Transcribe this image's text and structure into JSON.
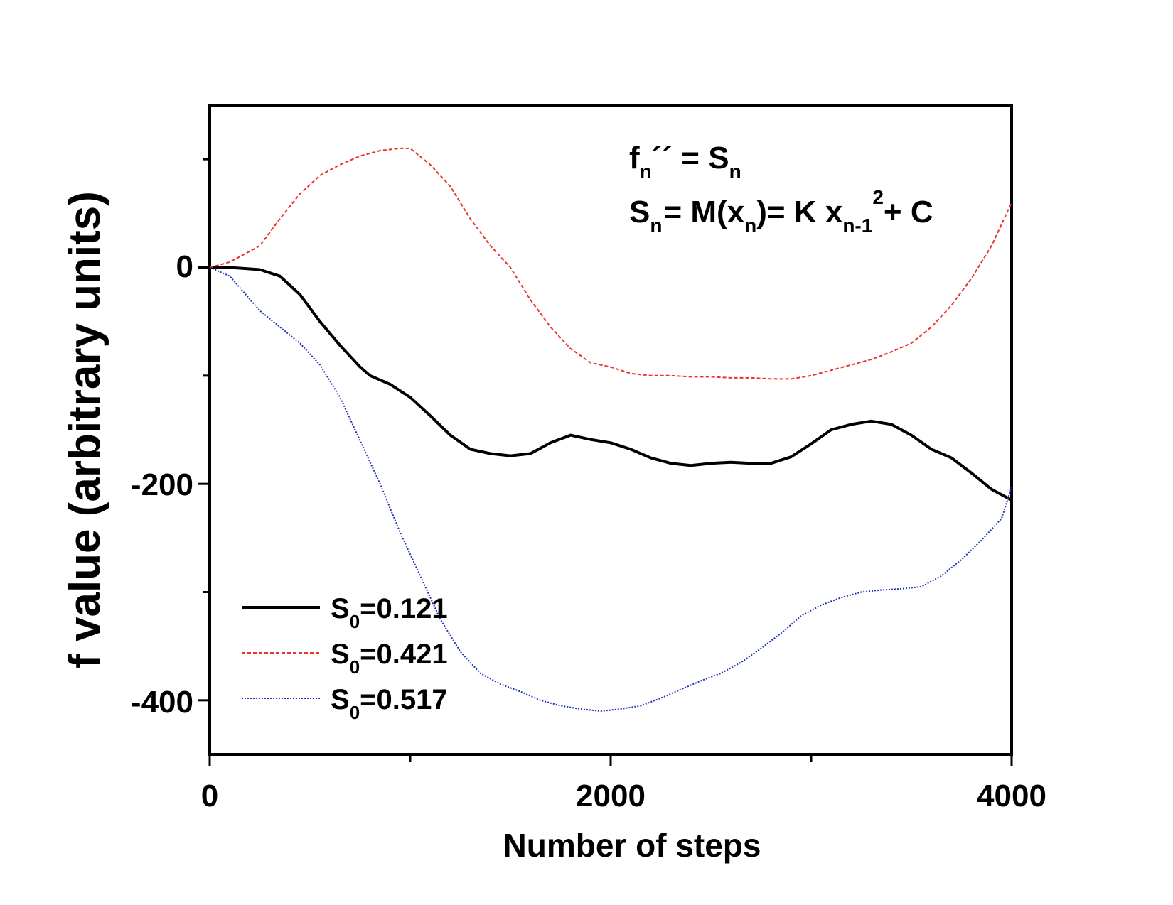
{
  "chart_data": {
    "type": "line",
    "xlabel": "Number of steps",
    "ylabel": "f value (arbitrary units)",
    "xlim": [
      0,
      4000
    ],
    "ylim": [
      -450,
      150
    ],
    "x_ticks": [
      0,
      2000,
      4000
    ],
    "x_tick_labels": [
      "0",
      "2000",
      "4000"
    ],
    "y_ticks": [
      0,
      -200,
      -400
    ],
    "y_tick_labels": [
      "0",
      "-200",
      "-400"
    ],
    "grid": false,
    "legend_position": "bottom-left",
    "equations": {
      "line1": {
        "f": "f",
        "f_sub": "n",
        "primes": "´´",
        "eq": " = S",
        "s_sub": "n"
      },
      "line2": {
        "s": "S",
        "s_sub": "n",
        "mid": "= M(x",
        "x_sub": "n",
        "mid2": ")= K x",
        "x2_sub": "n-1",
        "sup": "2",
        "end": "+ C"
      }
    },
    "series": [
      {
        "name": "S0=0.121",
        "legend_main": "S",
        "legend_sub": "0",
        "legend_value": "=0.121",
        "color": "#000000",
        "style": "solid",
        "x": [
          0,
          100,
          250,
          350,
          450,
          550,
          650,
          750,
          800,
          900,
          1000,
          1100,
          1200,
          1300,
          1400,
          1500,
          1600,
          1700,
          1800,
          1900,
          2000,
          2100,
          2200,
          2300,
          2400,
          2500,
          2600,
          2700,
          2800,
          2900,
          3000,
          3100,
          3200,
          3300,
          3400,
          3500,
          3600,
          3700,
          3800,
          3900,
          4000
        ],
        "values": [
          0,
          0,
          -2,
          -8,
          -25,
          -50,
          -72,
          -92,
          -100,
          -108,
          -120,
          -137,
          -155,
          -168,
          -172,
          -174,
          -172,
          -162,
          -155,
          -159,
          -162,
          -168,
          -176,
          -181,
          -183,
          -181,
          -180,
          -181,
          -181,
          -175,
          -163,
          -150,
          -145,
          -142,
          -145,
          -155,
          -168,
          -176,
          -190,
          -205,
          -215
        ]
      },
      {
        "name": "S0=0.421",
        "legend_main": "S",
        "legend_sub": "0",
        "legend_value": "=0.421",
        "color": "#e8332e",
        "style": "dashed",
        "x": [
          0,
          100,
          250,
          350,
          450,
          550,
          650,
          750,
          850,
          950,
          1000,
          1100,
          1200,
          1300,
          1400,
          1500,
          1600,
          1700,
          1800,
          1900,
          2000,
          2100,
          2200,
          2300,
          2400,
          2500,
          2600,
          2700,
          2800,
          2900,
          3000,
          3100,
          3200,
          3300,
          3400,
          3500,
          3600,
          3700,
          3800,
          3900,
          4000
        ],
        "values": [
          0,
          5,
          20,
          45,
          68,
          85,
          95,
          103,
          108,
          110,
          110,
          95,
          75,
          45,
          20,
          0,
          -30,
          -55,
          -75,
          -88,
          -92,
          -98,
          -100,
          -100,
          -101,
          -101,
          -102,
          -102,
          -103,
          -103,
          -100,
          -95,
          -90,
          -85,
          -78,
          -70,
          -55,
          -35,
          -10,
          20,
          60
        ]
      },
      {
        "name": "S0=0.517",
        "legend_main": "S",
        "legend_sub": "0",
        "legend_value": "=0.517",
        "color": "#2233bb",
        "style": "dotted",
        "x": [
          0,
          100,
          250,
          350,
          450,
          550,
          650,
          750,
          850,
          950,
          1050,
          1150,
          1250,
          1350,
          1450,
          1550,
          1650,
          1750,
          1850,
          1950,
          2050,
          2150,
          2250,
          2350,
          2450,
          2550,
          2650,
          2750,
          2850,
          2950,
          3050,
          3150,
          3250,
          3350,
          3450,
          3550,
          3650,
          3750,
          3850,
          3950,
          4000
        ],
        "values": [
          0,
          -8,
          -40,
          -55,
          -70,
          -90,
          -120,
          -160,
          -200,
          -245,
          -285,
          -325,
          -355,
          -375,
          -385,
          -392,
          -400,
          -405,
          -408,
          -410,
          -408,
          -405,
          -398,
          -390,
          -382,
          -375,
          -365,
          -352,
          -338,
          -322,
          -312,
          -305,
          -300,
          -298,
          -297,
          -295,
          -285,
          -270,
          -252,
          -232,
          -203
        ]
      }
    ]
  }
}
